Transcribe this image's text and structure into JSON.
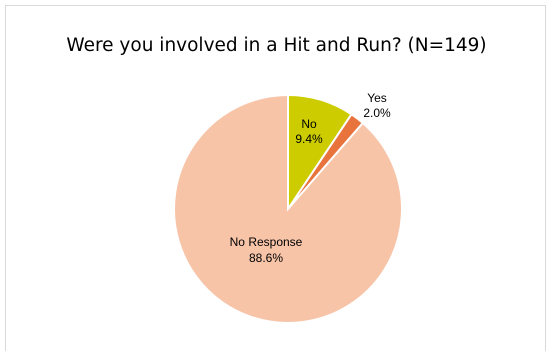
{
  "chart_data": {
    "type": "pie",
    "title": "Were you involved in a Hit and Run? (N=149)",
    "slices": [
      {
        "label": "No",
        "percent_label": "9.4%",
        "value": 9.4,
        "color": "#cccc00"
      },
      {
        "label": "Yes",
        "percent_label": "2.0%",
        "value": 2.0,
        "color": "#e8733c"
      },
      {
        "label": "No Response",
        "percent_label": "88.6%",
        "value": 88.6,
        "color": "#f7c4a8"
      }
    ],
    "legend": "none",
    "data_labels": "category and percent"
  }
}
